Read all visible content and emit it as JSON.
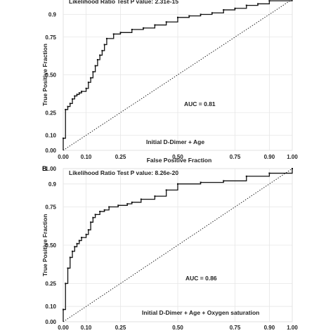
{
  "chart_data": [
    {
      "type": "line",
      "panel_label": "",
      "annotation_top": "Likelihood Ratio Test P value: 2.31e-15",
      "auc_label": "AUC = 0.81",
      "model_label": "Initial D-Dimer + Age",
      "xlabel": "False Positive Fraction",
      "ylabel": "True Positive Fraction",
      "x_ticks": [
        "0.00",
        "0.10",
        "0.25",
        "0.50",
        "0.75",
        "0.90",
        "1.00"
      ],
      "y_ticks": [
        "0.00",
        "0.10",
        "0.25",
        "0.50",
        "0.75",
        "0.9"
      ],
      "xlim": [
        0,
        1
      ],
      "ylim": [
        0,
        1
      ],
      "grid": true,
      "series": [
        {
          "x": [
            0,
            0,
            0.01,
            0.01,
            0.02,
            0.02,
            0.03,
            0.03,
            0.04,
            0.04,
            0.05,
            0.05,
            0.06,
            0.06,
            0.07,
            0.07,
            0.08,
            0.08,
            0.1,
            0.1,
            0.11,
            0.11,
            0.12,
            0.12,
            0.13,
            0.13,
            0.14,
            0.14,
            0.15,
            0.15,
            0.16,
            0.16,
            0.17,
            0.17,
            0.18,
            0.18,
            0.19,
            0.19,
            0.22,
            0.22,
            0.25,
            0.25,
            0.3,
            0.3,
            0.35,
            0.35,
            0.4,
            0.4,
            0.45,
            0.45,
            0.5,
            0.5,
            0.55,
            0.55,
            0.6,
            0.6,
            0.65,
            0.65,
            0.7,
            0.7,
            0.75,
            0.75,
            0.8,
            0.8,
            0.85,
            0.85,
            0.9,
            0.9,
            1.0,
            1.0
          ],
          "y": [
            0,
            0.08,
            0.08,
            0.27,
            0.27,
            0.29,
            0.29,
            0.31,
            0.31,
            0.34,
            0.34,
            0.36,
            0.36,
            0.37,
            0.37,
            0.38,
            0.38,
            0.39,
            0.39,
            0.41,
            0.41,
            0.45,
            0.45,
            0.48,
            0.48,
            0.52,
            0.52,
            0.56,
            0.56,
            0.6,
            0.6,
            0.63,
            0.63,
            0.66,
            0.66,
            0.7,
            0.7,
            0.74,
            0.74,
            0.77,
            0.77,
            0.78,
            0.78,
            0.8,
            0.8,
            0.81,
            0.81,
            0.83,
            0.83,
            0.85,
            0.85,
            0.88,
            0.88,
            0.89,
            0.89,
            0.9,
            0.9,
            0.91,
            0.91,
            0.93,
            0.93,
            0.94,
            0.94,
            0.96,
            0.96,
            0.97,
            0.97,
            0.99,
            0.99,
            1.0
          ]
        },
        {
          "x": [
            0,
            1
          ],
          "y": [
            0,
            1
          ],
          "style": "dotted"
        }
      ]
    },
    {
      "type": "line",
      "panel_label": "B",
      "annotation_top": "Likelihood Ratio Test P value: 8.26e-20",
      "auc_label": "AUC = 0.86",
      "model_label": "Initial D-Dimer + Age + Oxygen saturation",
      "xlabel": "",
      "ylabel": "True Positive Fraction",
      "x_ticks": [
        "0.00",
        "0.10",
        "0.25",
        "0.50",
        "0.75",
        "0.90",
        "1.00"
      ],
      "y_ticks": [
        "0.00",
        "0.10",
        "0.25",
        "0.50",
        "0.75",
        "0.9",
        "1.00"
      ],
      "xlim": [
        0,
        1
      ],
      "ylim": [
        0,
        1
      ],
      "grid": true,
      "series": [
        {
          "x": [
            0,
            0,
            0.01,
            0.01,
            0.02,
            0.02,
            0.03,
            0.03,
            0.04,
            0.04,
            0.05,
            0.05,
            0.06,
            0.06,
            0.07,
            0.07,
            0.08,
            0.08,
            0.1,
            0.1,
            0.11,
            0.11,
            0.12,
            0.12,
            0.13,
            0.13,
            0.14,
            0.14,
            0.16,
            0.16,
            0.18,
            0.18,
            0.2,
            0.2,
            0.24,
            0.24,
            0.28,
            0.28,
            0.3,
            0.3,
            0.34,
            0.34,
            0.4,
            0.4,
            0.45,
            0.45,
            0.5,
            0.5,
            0.6,
            0.6,
            0.7,
            0.7,
            0.8,
            0.8,
            0.9,
            0.9,
            1.0,
            1.0
          ],
          "y": [
            0,
            0.08,
            0.08,
            0.25,
            0.25,
            0.35,
            0.35,
            0.42,
            0.42,
            0.46,
            0.46,
            0.49,
            0.49,
            0.51,
            0.51,
            0.53,
            0.53,
            0.55,
            0.55,
            0.57,
            0.57,
            0.6,
            0.6,
            0.65,
            0.65,
            0.68,
            0.68,
            0.7,
            0.7,
            0.72,
            0.72,
            0.73,
            0.73,
            0.75,
            0.75,
            0.76,
            0.76,
            0.77,
            0.77,
            0.78,
            0.78,
            0.8,
            0.8,
            0.82,
            0.82,
            0.86,
            0.86,
            0.9,
            0.9,
            0.91,
            0.91,
            0.92,
            0.92,
            0.95,
            0.95,
            0.97,
            0.97,
            1.0
          ]
        },
        {
          "x": [
            0,
            1
          ],
          "y": [
            0,
            1
          ],
          "style": "dotted"
        }
      ]
    }
  ]
}
